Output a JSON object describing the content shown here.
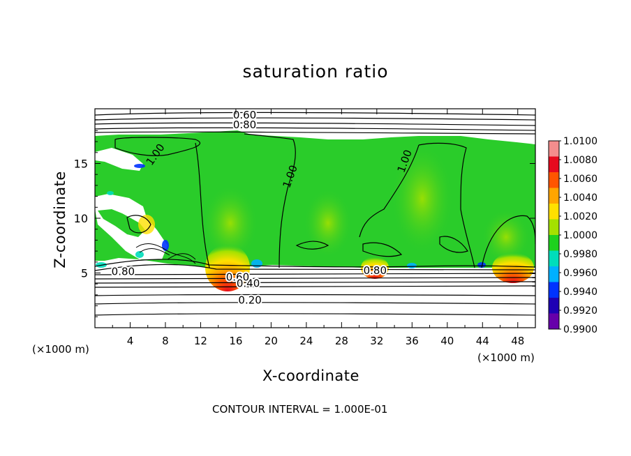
{
  "chart_data": {
    "type": "heatmap",
    "title": "saturation ratio",
    "xlabel": "X-coordinate",
    "ylabel": "Z-coordinate",
    "x_unit_label": "(×1000 m)",
    "xlim": [
      0,
      50
    ],
    "ylim": [
      0,
      20
    ],
    "x_ticks": [
      "4",
      "8",
      "12",
      "16",
      "20",
      "24",
      "28",
      "32",
      "36",
      "40",
      "44",
      "48"
    ],
    "y_ticks": [
      "5",
      "10",
      "15"
    ],
    "colorbar": {
      "labels": [
        "1.0100",
        "1.0080",
        "1.0060",
        "1.0040",
        "1.0020",
        "1.0000",
        "0.9980",
        "0.9960",
        "0.9940",
        "0.9920",
        "0.9900"
      ],
      "colors": [
        "#f48d8d",
        "#e60a1e",
        "#ff5500",
        "#ffa500",
        "#ffe000",
        "#a4e100",
        "#1ed21e",
        "#00ddbb",
        "#00b0ff",
        "#0033ff",
        "#1e00b4",
        "#6600aa"
      ]
    },
    "contour_labels": [
      {
        "text": "0.60",
        "x": 17.0,
        "y": 19.4
      },
      {
        "text": "0.80",
        "x": 17.0,
        "y": 18.5
      },
      {
        "text": "1.00",
        "x": 6.9,
        "y": 15.8
      },
      {
        "text": "1.00",
        "x": 22.2,
        "y": 13.8
      },
      {
        "text": "1.00",
        "x": 35.2,
        "y": 15.2
      },
      {
        "text": "0.80",
        "x": 3.2,
        "y": 5.1
      },
      {
        "text": "0.60",
        "x": 16.2,
        "y": 4.6
      },
      {
        "text": "0.40",
        "x": 17.4,
        "y": 4.0
      },
      {
        "text": "0.20",
        "x": 17.6,
        "y": 2.5
      },
      {
        "text": "0.80",
        "x": 31.8,
        "y": 5.2
      }
    ],
    "contour_interval": "CONTOUR INTERVAL = 1.000E-01",
    "colors": {
      "background_field": "#2acc2a",
      "cloud_free": "#ffffff",
      "contour": "#000000"
    }
  }
}
